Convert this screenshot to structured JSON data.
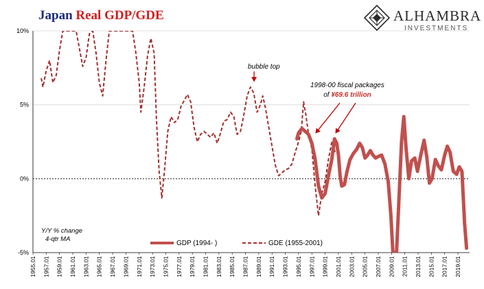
{
  "header": {
    "title_part1": "Japan",
    "title_part2": "Real GDP/GDE"
  },
  "logo": {
    "name": "ALHAMBRA",
    "subtitle": "INVESTMENTS"
  },
  "colors": {
    "gdp": "#c0504d",
    "gde": "#a0302e",
    "title_blue": "#1f2d7a",
    "title_red": "#d01f1f"
  },
  "annotations": {
    "bubble_top": "bubble top",
    "fiscal_line1": "1998-00 fiscal packages",
    "fiscal_line2_prefix": "of ",
    "fiscal_amount": "¥69.6 trillion",
    "ylabel_line1": "Y/Y % change",
    "ylabel_line2": "4-qtr MA"
  },
  "chart_data": {
    "type": "line",
    "xlim": [
      1955.0,
      2020.75
    ],
    "ylim": [
      -5,
      10
    ],
    "yticks": [
      {
        "value": 10,
        "label": "10%"
      },
      {
        "value": 5,
        "label": "5%"
      },
      {
        "value": 0,
        "label": "0%"
      },
      {
        "value": -5,
        "label": "-5%"
      }
    ],
    "xticks": [
      "1955.01",
      "1957.01",
      "1959.01",
      "1961.01",
      "1963.01",
      "1965.01",
      "1967.01",
      "1969.01",
      "1971.01",
      "1973.01",
      "1975.01",
      "1977.01",
      "1979.01",
      "1981.01",
      "1983.01",
      "1985.01",
      "1987.01",
      "1989.01",
      "1991.01",
      "1993.01",
      "1995.01",
      "1997.01",
      "1999.01",
      "2001.01",
      "2003.01",
      "2005.01",
      "2007.01",
      "2009.01",
      "2011.01",
      "2013.01",
      "2015.01",
      "2017.01",
      "2019.01"
    ],
    "legend_placement": "bottom",
    "series": [
      {
        "name": "GDP (1994- )",
        "style": "solid",
        "points": [
          [
            1994.75,
            2.7
          ],
          [
            1995.0,
            3.1
          ],
          [
            1995.5,
            3.4
          ],
          [
            1996.0,
            3.2
          ],
          [
            1996.5,
            3.0
          ],
          [
            1997.0,
            2.4
          ],
          [
            1997.5,
            1.3
          ],
          [
            1998.0,
            -0.5
          ],
          [
            1998.5,
            -1.3
          ],
          [
            1999.0,
            -1.0
          ],
          [
            1999.5,
            0.2
          ],
          [
            2000.0,
            1.3
          ],
          [
            2000.4,
            2.7
          ],
          [
            2000.75,
            2.4
          ],
          [
            2001.0,
            1.6
          ],
          [
            2001.25,
            0.2
          ],
          [
            2001.5,
            -0.5
          ],
          [
            2001.9,
            -0.4
          ],
          [
            2002.3,
            0.5
          ],
          [
            2002.75,
            1.3
          ],
          [
            2003.25,
            1.7
          ],
          [
            2003.75,
            2.0
          ],
          [
            2004.2,
            2.4
          ],
          [
            2004.6,
            2.1
          ],
          [
            2005.0,
            1.4
          ],
          [
            2005.4,
            1.6
          ],
          [
            2005.8,
            1.9
          ],
          [
            2006.2,
            1.6
          ],
          [
            2006.6,
            1.4
          ],
          [
            2007.0,
            1.5
          ],
          [
            2007.5,
            1.6
          ],
          [
            2008.0,
            1.0
          ],
          [
            2008.5,
            -0.2
          ],
          [
            2008.9,
            -2.5
          ],
          [
            2009.2,
            -5.0
          ],
          [
            2009.75,
            -5.0
          ],
          [
            2010.1,
            -1.5
          ],
          [
            2010.5,
            2.5
          ],
          [
            2010.85,
            4.2
          ],
          [
            2011.2,
            2.0
          ],
          [
            2011.6,
            0.0
          ],
          [
            2012.0,
            1.2
          ],
          [
            2012.5,
            1.4
          ],
          [
            2012.9,
            0.5
          ],
          [
            2013.4,
            1.6
          ],
          [
            2013.9,
            2.6
          ],
          [
            2014.3,
            1.5
          ],
          [
            2014.7,
            -0.3
          ],
          [
            2015.1,
            0.0
          ],
          [
            2015.6,
            1.3
          ],
          [
            2016.0,
            0.9
          ],
          [
            2016.5,
            0.6
          ],
          [
            2017.0,
            1.6
          ],
          [
            2017.4,
            2.2
          ],
          [
            2017.8,
            1.8
          ],
          [
            2018.3,
            0.5
          ],
          [
            2018.8,
            0.3
          ],
          [
            2019.2,
            0.8
          ],
          [
            2019.6,
            0.5
          ],
          [
            2020.0,
            -3.0
          ],
          [
            2020.3,
            -4.7
          ]
        ]
      },
      {
        "name": "GDE (1955-2001)",
        "style": "dashed",
        "points": [
          [
            1956.25,
            6.8
          ],
          [
            1956.5,
            6.2
          ],
          [
            1957.0,
            7.3
          ],
          [
            1957.5,
            8.0
          ],
          [
            1958.0,
            6.5
          ],
          [
            1958.5,
            7.0
          ],
          [
            1959.0,
            8.7
          ],
          [
            1959.5,
            10.0
          ],
          [
            1960.0,
            10.0
          ],
          [
            1961.0,
            10.0
          ],
          [
            1961.5,
            10.0
          ],
          [
            1962.0,
            8.8
          ],
          [
            1962.5,
            7.6
          ],
          [
            1963.0,
            8.2
          ],
          [
            1963.5,
            9.8
          ],
          [
            1964.0,
            10.0
          ],
          [
            1964.5,
            8.5
          ],
          [
            1965.0,
            6.5
          ],
          [
            1965.5,
            5.6
          ],
          [
            1966.0,
            8.0
          ],
          [
            1966.5,
            10.0
          ],
          [
            1967.5,
            10.0
          ],
          [
            1969.0,
            10.0
          ],
          [
            1970.0,
            10.0
          ],
          [
            1970.5,
            8.5
          ],
          [
            1971.0,
            6.5
          ],
          [
            1971.25,
            4.5
          ],
          [
            1971.75,
            6.2
          ],
          [
            1972.25,
            8.3
          ],
          [
            1972.75,
            9.5
          ],
          [
            1973.25,
            8.5
          ],
          [
            1973.6,
            4.0
          ],
          [
            1974.0,
            0.5
          ],
          [
            1974.4,
            -1.3
          ],
          [
            1974.8,
            0.5
          ],
          [
            1975.3,
            3.2
          ],
          [
            1975.8,
            4.2
          ],
          [
            1976.3,
            3.8
          ],
          [
            1976.8,
            4.0
          ],
          [
            1977.3,
            4.9
          ],
          [
            1977.8,
            5.3
          ],
          [
            1978.25,
            5.7
          ],
          [
            1978.75,
            5.2
          ],
          [
            1979.25,
            3.5
          ],
          [
            1979.75,
            2.5
          ],
          [
            1980.25,
            3.0
          ],
          [
            1980.75,
            3.2
          ],
          [
            1981.25,
            3.0
          ],
          [
            1981.75,
            2.8
          ],
          [
            1982.25,
            3.1
          ],
          [
            1982.75,
            2.4
          ],
          [
            1983.25,
            3.1
          ],
          [
            1983.75,
            3.9
          ],
          [
            1984.25,
            4.0
          ],
          [
            1984.75,
            4.5
          ],
          [
            1985.25,
            4.2
          ],
          [
            1985.75,
            3.0
          ],
          [
            1986.25,
            3.2
          ],
          [
            1986.75,
            4.3
          ],
          [
            1987.25,
            5.6
          ],
          [
            1987.75,
            6.2
          ],
          [
            1988.25,
            5.8
          ],
          [
            1988.75,
            4.5
          ],
          [
            1989.25,
            5.0
          ],
          [
            1989.6,
            5.6
          ],
          [
            1990.0,
            4.8
          ],
          [
            1990.5,
            3.5
          ],
          [
            1991.0,
            2.2
          ],
          [
            1991.5,
            0.9
          ],
          [
            1992.0,
            0.2
          ],
          [
            1992.5,
            0.4
          ],
          [
            1993.0,
            0.6
          ],
          [
            1993.5,
            0.7
          ],
          [
            1994.0,
            1.0
          ],
          [
            1994.5,
            1.8
          ],
          [
            1995.0,
            2.5
          ],
          [
            1995.4,
            3.2
          ],
          [
            1995.75,
            5.2
          ],
          [
            1996.1,
            4.3
          ],
          [
            1996.5,
            3.0
          ],
          [
            1997.0,
            2.0
          ],
          [
            1997.5,
            -0.5
          ],
          [
            1998.0,
            -2.5
          ],
          [
            1998.5,
            -1.0
          ],
          [
            1999.0,
            -0.2
          ],
          [
            1999.5,
            1.3
          ],
          [
            2000.0,
            2.5
          ],
          [
            2000.5,
            1.8
          ]
        ]
      }
    ]
  }
}
